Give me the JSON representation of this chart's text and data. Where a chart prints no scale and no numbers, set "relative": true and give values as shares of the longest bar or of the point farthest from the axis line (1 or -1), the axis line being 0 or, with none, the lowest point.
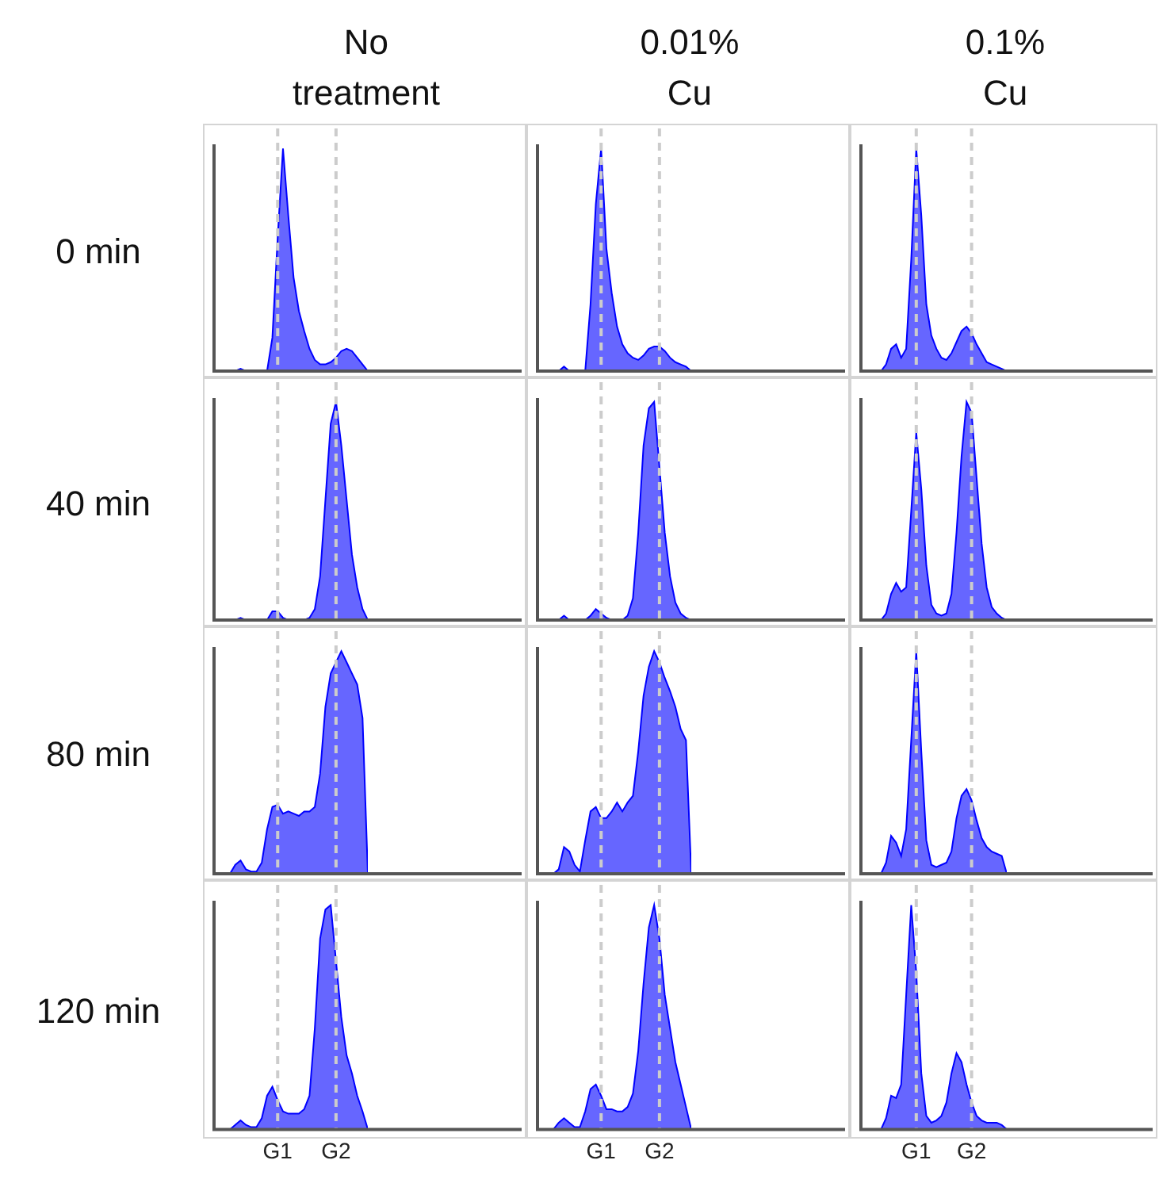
{
  "chart_data": [
    {
      "type": "area",
      "title": "No treatment",
      "ylabel": "0 min",
      "relative": true,
      "marker": "none",
      "tick_labels": false,
      "color": "#0000ff",
      "categories": [
        null,
        null,
        null,
        null,
        null,
        null,
        null,
        null,
        null,
        null,
        null,
        null,
        "G1",
        null,
        null,
        null,
        null,
        null,
        null,
        null,
        null,
        null,
        null,
        "G2",
        null,
        null,
        null,
        null,
        null,
        null
      ],
      "values": [
        0,
        0,
        0,
        0,
        0,
        0.01,
        0,
        0,
        0,
        0,
        0,
        0.15,
        0.6,
        1,
        0.7,
        0.42,
        0.27,
        0.18,
        0.1,
        0.05,
        0.03,
        0.03,
        0.04,
        0.06,
        0.09,
        0.1,
        0.09,
        0.06,
        0.03,
        0
      ],
      "ref_lines": [
        {
          "axis": "x",
          "value": "G1",
          "color": "#cccccc",
          "line_style": "dashed"
        },
        {
          "axis": "x",
          "value": "G2",
          "color": "#cccccc",
          "line_style": "dashed"
        }
      ]
    },
    {
      "type": "area",
      "title": "0.01% Cu",
      "relative": true,
      "marker": "none",
      "tick_labels": false,
      "color": "#0000ff",
      "categories": [
        null,
        null,
        null,
        null,
        null,
        null,
        null,
        null,
        null,
        null,
        null,
        null,
        "G1",
        null,
        null,
        null,
        null,
        null,
        null,
        null,
        null,
        null,
        null,
        "G2",
        null,
        null,
        null,
        null,
        null,
        null
      ],
      "values": [
        0,
        0,
        0,
        0,
        0,
        0.02,
        0,
        0,
        0,
        0,
        0.3,
        0.75,
        1,
        0.55,
        0.35,
        0.2,
        0.12,
        0.08,
        0.06,
        0.05,
        0.07,
        0.1,
        0.11,
        0.11,
        0.09,
        0.06,
        0.04,
        0.03,
        0.02,
        0
      ],
      "ref_lines": [
        {
          "axis": "x",
          "value": "G1",
          "color": "#cccccc",
          "line_style": "dashed"
        },
        {
          "axis": "x",
          "value": "G2",
          "color": "#cccccc",
          "line_style": "dashed"
        }
      ]
    },
    {
      "type": "area",
      "title": "0.1% Cu",
      "relative": true,
      "marker": "none",
      "tick_labels": false,
      "color": "#0000ff",
      "categories": [
        null,
        null,
        null,
        null,
        null,
        null,
        null,
        null,
        null,
        null,
        null,
        "G1",
        null,
        null,
        null,
        null,
        null,
        null,
        null,
        null,
        null,
        null,
        "G2",
        null,
        null,
        null,
        null,
        null,
        null,
        null
      ],
      "values": [
        0,
        0,
        0,
        0,
        0,
        0.03,
        0.1,
        0.12,
        0.06,
        0.1,
        0.5,
        1,
        0.7,
        0.3,
        0.16,
        0.1,
        0.06,
        0.05,
        0.08,
        0.13,
        0.18,
        0.2,
        0.17,
        0.12,
        0.08,
        0.04,
        0.03,
        0.02,
        0.01,
        0
      ],
      "ref_lines": [
        {
          "axis": "x",
          "value": "G1",
          "color": "#cccccc",
          "line_style": "dashed"
        },
        {
          "axis": "x",
          "value": "G2",
          "color": "#cccccc",
          "line_style": "dashed"
        }
      ]
    },
    {
      "type": "area",
      "ylabel": "40 min",
      "relative": true,
      "marker": "none",
      "tick_labels": false,
      "color": "#0000ff",
      "categories": [
        null,
        null,
        null,
        null,
        null,
        null,
        null,
        null,
        null,
        null,
        null,
        null,
        "G1",
        null,
        null,
        null,
        null,
        null,
        null,
        null,
        null,
        null,
        null,
        "G2",
        null,
        null,
        null,
        null,
        null,
        null
      ],
      "values": [
        0,
        0,
        0,
        0,
        0,
        0.01,
        0,
        0,
        0,
        0,
        0,
        0.04,
        0.04,
        0.01,
        0,
        0,
        0,
        0,
        0.01,
        0.05,
        0.2,
        0.55,
        0.9,
        1,
        0.8,
        0.55,
        0.3,
        0.15,
        0.05,
        0
      ],
      "ref_lines": [
        {
          "axis": "x",
          "value": "G1",
          "color": "#cccccc",
          "line_style": "dashed"
        },
        {
          "axis": "x",
          "value": "G2",
          "color": "#cccccc",
          "line_style": "dashed"
        }
      ]
    },
    {
      "type": "area",
      "relative": true,
      "marker": "none",
      "tick_labels": false,
      "color": "#0000ff",
      "categories": [
        null,
        null,
        null,
        null,
        null,
        null,
        null,
        null,
        null,
        null,
        null,
        null,
        "G1",
        null,
        null,
        null,
        null,
        null,
        null,
        null,
        null,
        null,
        null,
        "G2",
        null,
        null,
        null,
        null,
        null,
        null
      ],
      "values": [
        0,
        0,
        0,
        0,
        0,
        0.02,
        0,
        0,
        0,
        0,
        0.02,
        0.05,
        0.03,
        0.01,
        0,
        0,
        0,
        0.02,
        0.1,
        0.4,
        0.8,
        0.97,
        1,
        0.7,
        0.4,
        0.2,
        0.08,
        0.03,
        0.01,
        0
      ],
      "ref_lines": [
        {
          "axis": "x",
          "value": "G1",
          "color": "#cccccc",
          "line_style": "dashed"
        },
        {
          "axis": "x",
          "value": "G2",
          "color": "#cccccc",
          "line_style": "dashed"
        }
      ]
    },
    {
      "type": "area",
      "relative": true,
      "marker": "none",
      "tick_labels": false,
      "color": "#0000ff",
      "categories": [
        null,
        null,
        null,
        null,
        null,
        null,
        null,
        null,
        null,
        null,
        null,
        "G1",
        null,
        null,
        null,
        null,
        null,
        null,
        null,
        null,
        null,
        null,
        "G2",
        null,
        null,
        null,
        null,
        null,
        null,
        null
      ],
      "values": [
        0,
        0,
        0,
        0,
        0,
        0.03,
        0.12,
        0.17,
        0.13,
        0.15,
        0.5,
        0.86,
        0.6,
        0.25,
        0.07,
        0.03,
        0.02,
        0.03,
        0.12,
        0.4,
        0.75,
        1,
        0.95,
        0.65,
        0.35,
        0.15,
        0.06,
        0.03,
        0.01,
        0
      ],
      "ref_lines": [
        {
          "axis": "x",
          "value": "G1",
          "color": "#cccccc",
          "line_style": "dashed"
        },
        {
          "axis": "x",
          "value": "G2",
          "color": "#cccccc",
          "line_style": "dashed"
        }
      ]
    },
    {
      "type": "area",
      "ylabel": "80 min",
      "relative": true,
      "marker": "none",
      "tick_labels": false,
      "color": "#0000ff",
      "categories": [
        null,
        null,
        null,
        null,
        null,
        null,
        null,
        null,
        null,
        null,
        null,
        null,
        "G1",
        null,
        null,
        null,
        null,
        null,
        null,
        null,
        null,
        null,
        null,
        "G2",
        null,
        null,
        null,
        null,
        null,
        null
      ],
      "values": [
        0,
        0,
        0,
        0,
        0.04,
        0.06,
        0.02,
        0.01,
        0.01,
        0.05,
        0.2,
        0.3,
        0.31,
        0.27,
        0.28,
        0.27,
        0.26,
        0.28,
        0.28,
        0.3,
        0.45,
        0.75,
        0.9,
        0.95,
        1,
        0.95,
        0.9,
        0.85,
        0.7,
        0
      ],
      "ref_lines": [
        {
          "axis": "x",
          "value": "G1",
          "color": "#cccccc",
          "line_style": "dashed"
        },
        {
          "axis": "x",
          "value": "G2",
          "color": "#cccccc",
          "line_style": "dashed"
        }
      ]
    },
    {
      "type": "area",
      "relative": true,
      "marker": "none",
      "tick_labels": false,
      "color": "#0000ff",
      "categories": [
        null,
        null,
        null,
        null,
        null,
        null,
        null,
        null,
        null,
        null,
        null,
        null,
        "G1",
        null,
        null,
        null,
        null,
        null,
        null,
        null,
        null,
        null,
        null,
        "G2",
        null,
        null,
        null,
        null,
        null,
        null
      ],
      "values": [
        0,
        0,
        0,
        0,
        0.02,
        0.12,
        0.1,
        0.04,
        0.01,
        0.15,
        0.28,
        0.3,
        0.25,
        0.25,
        0.28,
        0.32,
        0.28,
        0.32,
        0.35,
        0.55,
        0.8,
        0.93,
        1,
        0.95,
        0.88,
        0.82,
        0.75,
        0.65,
        0.6,
        0
      ],
      "ref_lines": [
        {
          "axis": "x",
          "value": "G1",
          "color": "#cccccc",
          "line_style": "dashed"
        },
        {
          "axis": "x",
          "value": "G2",
          "color": "#cccccc",
          "line_style": "dashed"
        }
      ]
    },
    {
      "type": "area",
      "relative": true,
      "marker": "none",
      "tick_labels": false,
      "color": "#0000ff",
      "categories": [
        null,
        null,
        null,
        null,
        null,
        null,
        null,
        null,
        null,
        null,
        null,
        "G1",
        null,
        null,
        null,
        null,
        null,
        null,
        null,
        null,
        null,
        null,
        "G2",
        null,
        null,
        null,
        null,
        null,
        null,
        null
      ],
      "values": [
        0,
        0,
        0,
        0,
        0,
        0.05,
        0.17,
        0.14,
        0.08,
        0.2,
        0.6,
        1,
        0.55,
        0.15,
        0.04,
        0.03,
        0.04,
        0.05,
        0.1,
        0.25,
        0.35,
        0.38,
        0.33,
        0.24,
        0.16,
        0.12,
        0.1,
        0.09,
        0.08,
        0
      ],
      "ref_lines": [
        {
          "axis": "x",
          "value": "G1",
          "color": "#cccccc",
          "line_style": "dashed"
        },
        {
          "axis": "x",
          "value": "G2",
          "color": "#cccccc",
          "line_style": "dashed"
        }
      ]
    },
    {
      "type": "area",
      "ylabel": "120 min",
      "relative": true,
      "marker": "none",
      "tick_labels": "x",
      "color": "#0000ff",
      "categories": [
        null,
        null,
        null,
        null,
        null,
        null,
        null,
        null,
        null,
        null,
        null,
        null,
        "G1",
        null,
        null,
        null,
        null,
        null,
        null,
        null,
        null,
        null,
        null,
        "G2",
        null,
        null,
        null,
        null,
        null,
        null
      ],
      "values": [
        0,
        0,
        0,
        0,
        0.02,
        0.04,
        0.02,
        0.01,
        0.01,
        0.05,
        0.15,
        0.19,
        0.13,
        0.08,
        0.07,
        0.07,
        0.07,
        0.09,
        0.15,
        0.45,
        0.85,
        0.98,
        1,
        0.75,
        0.5,
        0.33,
        0.25,
        0.15,
        0.08,
        0
      ],
      "ref_lines": [
        {
          "axis": "x",
          "value": "G1",
          "color": "#cccccc",
          "line_style": "dashed"
        },
        {
          "axis": "x",
          "value": "G2",
          "color": "#cccccc",
          "line_style": "dashed"
        }
      ]
    },
    {
      "type": "area",
      "relative": true,
      "marker": "none",
      "tick_labels": "x",
      "color": "#0000ff",
      "categories": [
        null,
        null,
        null,
        null,
        null,
        null,
        null,
        null,
        null,
        null,
        null,
        null,
        "G1",
        null,
        null,
        null,
        null,
        null,
        null,
        null,
        null,
        null,
        null,
        "G2",
        null,
        null,
        null,
        null,
        null,
        null
      ],
      "values": [
        0,
        0,
        0,
        0,
        0.03,
        0.05,
        0.03,
        0.01,
        0.01,
        0.08,
        0.18,
        0.2,
        0.15,
        0.09,
        0.09,
        0.08,
        0.08,
        0.1,
        0.16,
        0.35,
        0.65,
        0.9,
        1,
        0.85,
        0.6,
        0.45,
        0.3,
        0.2,
        0.1,
        0
      ],
      "ref_lines": [
        {
          "axis": "x",
          "value": "G1",
          "color": "#cccccc",
          "line_style": "dashed"
        },
        {
          "axis": "x",
          "value": "G2",
          "color": "#cccccc",
          "line_style": "dashed"
        }
      ]
    },
    {
      "type": "area",
      "relative": true,
      "marker": "none",
      "tick_labels": "x",
      "color": "#0000ff",
      "categories": [
        null,
        null,
        null,
        null,
        null,
        null,
        null,
        null,
        null,
        null,
        null,
        "G1",
        null,
        null,
        null,
        null,
        null,
        null,
        null,
        null,
        null,
        null,
        "G2",
        null,
        null,
        null,
        null,
        null,
        null,
        null
      ],
      "values": [
        0,
        0,
        0,
        0,
        0,
        0.05,
        0.15,
        0.14,
        0.2,
        0.6,
        1,
        0.7,
        0.25,
        0.06,
        0.03,
        0.04,
        0.06,
        0.12,
        0.25,
        0.34,
        0.3,
        0.2,
        0.12,
        0.06,
        0.04,
        0.03,
        0.03,
        0.03,
        0.02,
        0
      ],
      "ref_lines": [
        {
          "axis": "x",
          "value": "G1",
          "color": "#cccccc",
          "line_style": "dashed"
        },
        {
          "axis": "x",
          "value": "G2",
          "color": "#cccccc",
          "line_style": "dashed"
        }
      ]
    }
  ]
}
